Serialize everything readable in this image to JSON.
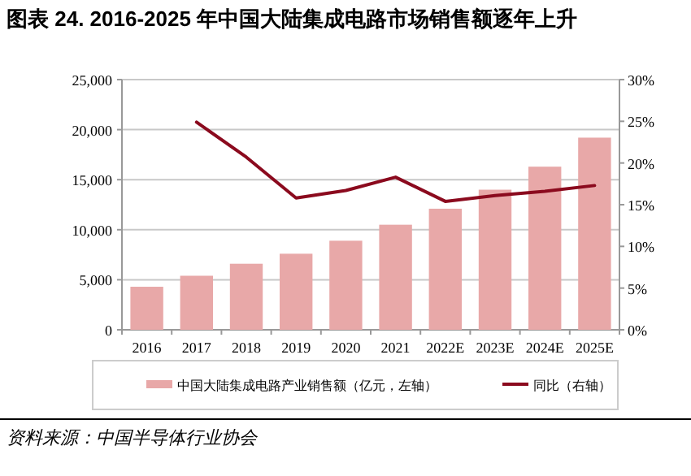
{
  "chart_data": {
    "type": "bar",
    "title": "图表 24. 2016-2025 年中国大陆集成电路市场销售额逐年上升",
    "categories": [
      "2016",
      "2017",
      "2018",
      "2019",
      "2020",
      "2021",
      "2022E",
      "2023E",
      "2024E",
      "2025E"
    ],
    "series": [
      {
        "name": "中国大陆集成电路产业销售额（亿元，左轴）",
        "color": "#e8a8a8",
        "values": [
          4300,
          5400,
          6600,
          7600,
          8900,
          10500,
          12100,
          14000,
          16300,
          19200
        ]
      },
      {
        "name": "同比（右轴）",
        "type": "line",
        "axis": "y2",
        "color": "#8b0a1e",
        "values": [
          null,
          24.9,
          20.7,
          15.8,
          16.7,
          18.3,
          15.4,
          16.1,
          16.6,
          17.3
        ]
      }
    ],
    "ylim": [
      0,
      25000
    ],
    "yticks": [
      {
        "value": 0,
        "label": "0"
      },
      {
        "value": 5000,
        "label": "5,000"
      },
      {
        "value": 10000,
        "label": "10,000"
      },
      {
        "value": 15000,
        "label": "15,000"
      },
      {
        "value": 20000,
        "label": "20,000"
      },
      {
        "value": 25000,
        "label": "25,000"
      }
    ],
    "y2lim": [
      0,
      30
    ],
    "y2ticks": [
      {
        "value": 0,
        "label": "0%"
      },
      {
        "value": 5,
        "label": "5%"
      },
      {
        "value": 10,
        "label": "10%"
      },
      {
        "value": 15,
        "label": "15%"
      },
      {
        "value": 20,
        "label": "20%"
      },
      {
        "value": 25,
        "label": "25%"
      },
      {
        "value": 30,
        "label": "30%"
      }
    ],
    "grid": "y",
    "legend": "bottom",
    "annotations": [
      "资料来源：中国半导体行业协会"
    ]
  }
}
